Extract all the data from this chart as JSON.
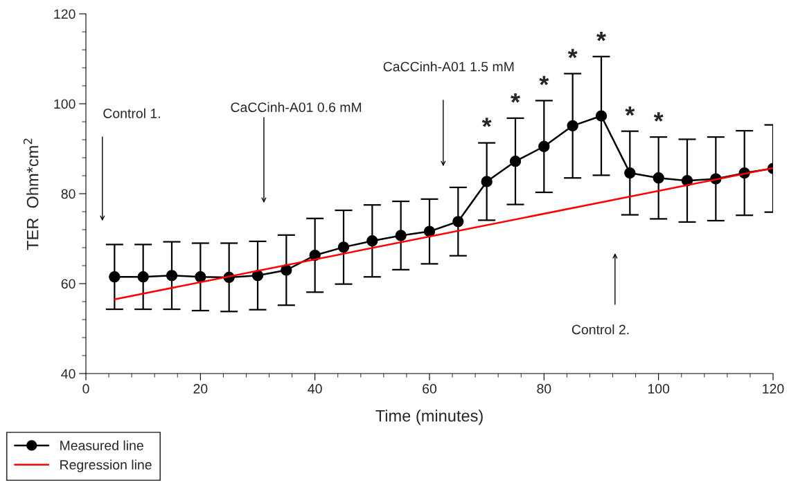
{
  "chart_data": {
    "type": "line",
    "xlabel": "Time (minutes)",
    "ylabel": "TER  Ohm*cm$^{2}$",
    "xlim": [
      0,
      120
    ],
    "xticks": [
      0,
      20,
      40,
      60,
      80,
      100,
      120
    ],
    "ylim": [
      40,
      120
    ],
    "yticks": [
      40,
      60,
      80,
      100,
      120
    ],
    "grid": false,
    "legend": "bottom left",
    "marker": "circle",
    "line_style": "solid",
    "series": [
      {
        "name": "Measured line",
        "color": "#000000",
        "x": [
          5,
          10,
          15,
          20,
          25,
          30,
          35,
          40,
          45,
          50,
          55,
          60,
          65,
          70,
          75,
          80,
          85,
          90,
          95,
          100,
          105,
          110,
          115,
          120
        ],
        "values": [
          61.5,
          61.5,
          61.8,
          61.5,
          61.4,
          61.8,
          63,
          66.3,
          68.1,
          69.5,
          70.7,
          71.6,
          73.8,
          82.7,
          87.2,
          90.5,
          95.1,
          97.3,
          84.6,
          83.5,
          82.9,
          83.3,
          84.6,
          85.6
        ],
        "errors": [
          7.2,
          7.2,
          7.5,
          7.5,
          7.6,
          7.6,
          7.8,
          8.2,
          8.2,
          8.0,
          7.6,
          7.2,
          7.6,
          8.6,
          9.6,
          10.2,
          11.6,
          13.2,
          9.3,
          9.1,
          9.2,
          9.3,
          9.4,
          9.7
        ]
      },
      {
        "name": "Regression line",
        "color": "#ff0000",
        "marker": "none",
        "x": [
          5,
          120
        ],
        "values": [
          56.5,
          85.7
        ]
      }
    ],
    "annotations": [
      "Control 1.",
      "CaCCinh-A01 0.6 mM",
      "CaCCinh-A01 1.5 mM",
      "Control 2.",
      {
        "text": "*",
        "x": 70,
        "y": 91.5
      },
      {
        "text": "*",
        "x": 75,
        "y": 96.9
      },
      {
        "text": "*",
        "x": 80,
        "y": 100.8
      },
      {
        "text": "*",
        "x": 85,
        "y": 106.8
      },
      {
        "text": "*",
        "x": 90,
        "y": 110.6
      },
      {
        "text": "*",
        "x": 95,
        "y": 94
      },
      {
        "text": "*",
        "x": 100,
        "y": 92.7
      }
    ]
  }
}
